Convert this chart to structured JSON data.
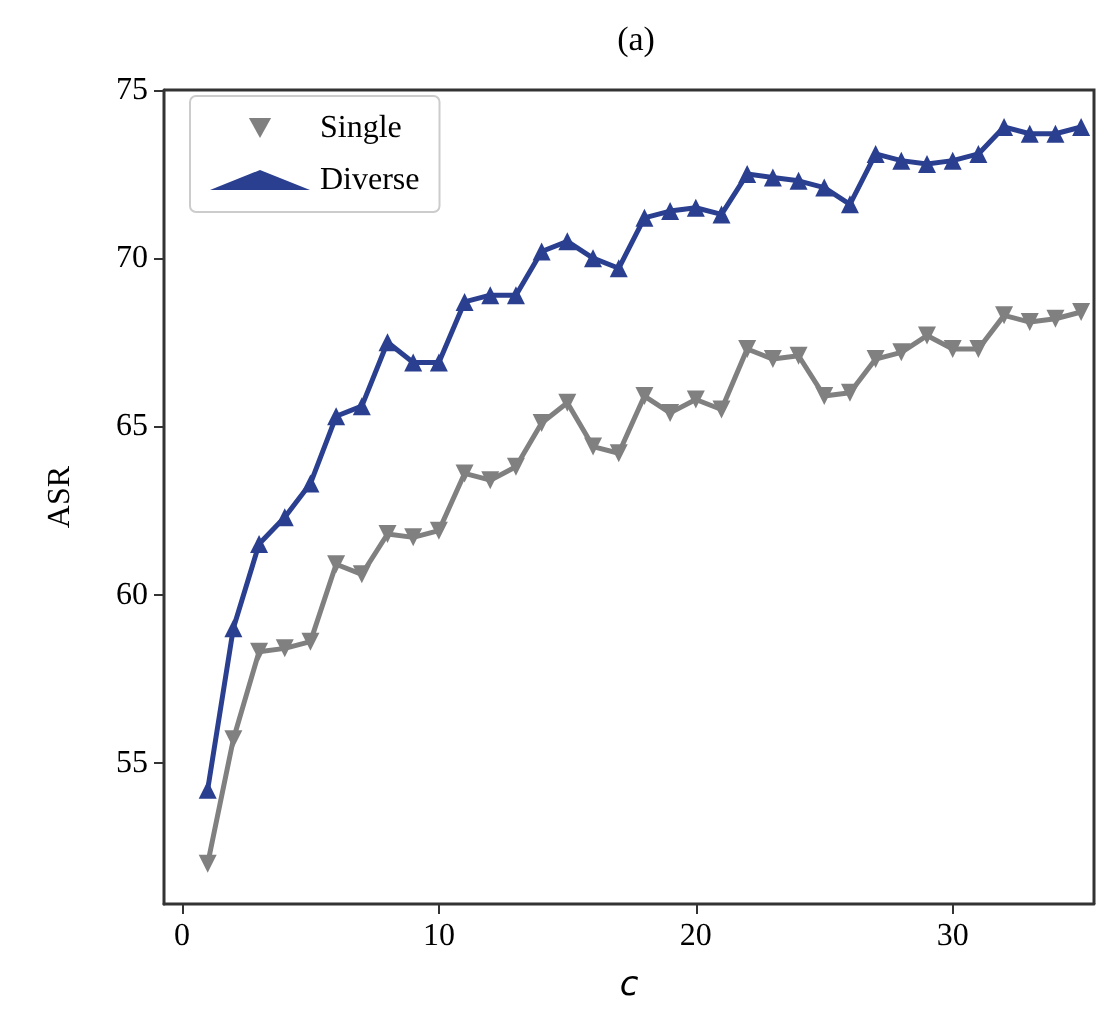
{
  "chart_data": {
    "type": "line",
    "title": "(a)",
    "xlabel": "c",
    "ylabel": "ASR",
    "x": [
      1,
      2,
      3,
      4,
      5,
      6,
      7,
      8,
      9,
      10,
      11,
      12,
      13,
      14,
      15,
      16,
      17,
      18,
      19,
      20,
      21,
      22,
      23,
      24,
      25,
      26,
      27,
      28,
      29,
      30,
      31,
      32,
      33,
      34,
      35
    ],
    "series": [
      {
        "name": "Single",
        "color": "#808080",
        "marker": "triangle-down",
        "values": [
          52.0,
          55.7,
          58.3,
          58.4,
          58.6,
          60.9,
          60.6,
          61.8,
          61.7,
          61.9,
          63.6,
          63.4,
          63.8,
          65.1,
          65.7,
          64.4,
          64.2,
          65.9,
          65.4,
          65.8,
          65.5,
          67.3,
          67.0,
          67.1,
          65.9,
          66.0,
          67.0,
          67.2,
          67.7,
          67.3,
          67.3,
          68.3,
          68.1,
          68.2,
          68.4
        ]
      },
      {
        "name": "Diverse",
        "color": "#2a3f8f",
        "marker": "triangle",
        "values": [
          54.2,
          59.0,
          61.5,
          62.3,
          63.3,
          65.3,
          65.6,
          67.5,
          66.9,
          66.9,
          68.7,
          68.9,
          68.9,
          70.2,
          70.5,
          70.0,
          69.7,
          71.2,
          71.4,
          71.5,
          71.3,
          72.5,
          72.4,
          72.3,
          72.1,
          71.6,
          73.1,
          72.9,
          72.8,
          72.9,
          73.1,
          73.9,
          73.7,
          73.7,
          73.9
        ]
      }
    ],
    "xlim": [
      -0.7,
      35.5
    ],
    "xticks": [
      0,
      10,
      20,
      30
    ],
    "ylim": [
      50.8,
      75
    ],
    "yticks": [
      55,
      60,
      65,
      70,
      75
    ],
    "grid": false,
    "legend": "top left",
    "line_style": "solid"
  }
}
